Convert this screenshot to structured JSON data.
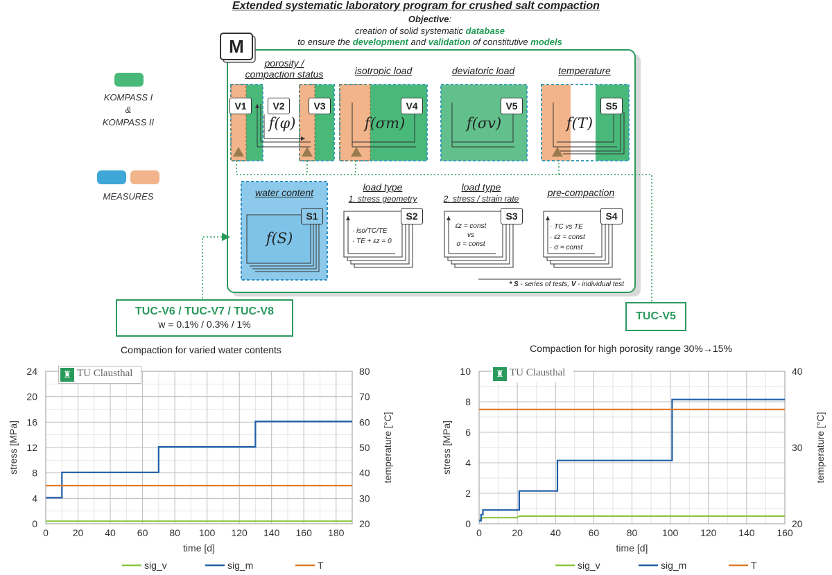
{
  "header": {
    "title": "Extended systematic laboratory program for crushed salt compaction",
    "objective_label": "Objective",
    "objective_colon": ":",
    "line2": "creation of solid systematic",
    "line2_em": "database",
    "line3_a": "to ensure the",
    "line3_em1": "development",
    "line3_b": "and",
    "line3_em2": "validation",
    "line3_c": "of constitutive",
    "line3_em3": "models"
  },
  "legend_left": {
    "kompass": [
      "KOMPASS I",
      "&",
      "KOMPASS II"
    ],
    "measures": "MEASURES",
    "colors": {
      "green": "#49b97a",
      "blue": "#3ea7d8",
      "orange": "#f2b48a"
    }
  },
  "matrix": {
    "m_label": "M",
    "sections": [
      {
        "label": "porosity /",
        "label2": "compaction status"
      },
      {
        "label": "isotropic load"
      },
      {
        "label": "deviatoric load"
      },
      {
        "label": "temperature"
      }
    ],
    "v_tags": [
      "V1",
      "V2",
      "V3",
      "V4",
      "V5",
      "S5"
    ],
    "funcs": {
      "phi": "f(φ)",
      "sigm": "f(σm)",
      "sigv": "f(σv)",
      "T": "f(T)",
      "S": "f(S)"
    },
    "series": [
      {
        "tag": "S1",
        "title": "water content"
      },
      {
        "tag": "S2",
        "title": "load type",
        "sub": "1. stress geometry",
        "lines": [
          "· iso/TC/TE",
          "· TE + εz = 0"
        ]
      },
      {
        "tag": "S3",
        "title": "load type",
        "sub": "2. stress / strain rate",
        "lines": [
          "ε̇z = const",
          "vs",
          "σ = const"
        ]
      },
      {
        "tag": "S4",
        "title": "pre-compaction",
        "lines": [
          "· TC vs TE",
          "· ε̇z = const",
          "· σ = const"
        ]
      }
    ],
    "footnote_a": "* S",
    "footnote_b": " - series of tests, ",
    "footnote_c": "V",
    "footnote_d": " - individual test"
  },
  "callouts": {
    "left_title": "TUC-V6 / TUC-V7 / TUC-V8",
    "left_sub": "w = 0.1% / 0.3% / 1%",
    "right_title": "TUC-V5"
  },
  "logo_text": "TU Clausthal",
  "chart_data": [
    {
      "type": "line",
      "title": "Compaction for varied water contents",
      "xlabel": "time [d]",
      "ylabel": "stress [MPa]",
      "y2label": "temperature [°C]",
      "xlim": [
        0,
        190
      ],
      "ylim": [
        0,
        24
      ],
      "y2lim": [
        20,
        80
      ],
      "xticks": [
        0,
        20,
        40,
        60,
        80,
        100,
        120,
        140,
        160,
        180
      ],
      "yticks": [
        0,
        4,
        8,
        12,
        16,
        20,
        24
      ],
      "y2ticks": [
        20,
        30,
        40,
        50,
        60,
        70,
        80
      ],
      "grid": true,
      "legend": "bottom",
      "series": [
        {
          "name": "sig_v",
          "color": "#8cc63f",
          "axis": "y",
          "x": [
            0,
            190
          ],
          "y": [
            0.4,
            0.4
          ]
        },
        {
          "name": "sig_m",
          "color": "#1f5fa8",
          "axis": "y",
          "x": [
            0,
            10,
            10,
            70,
            70,
            130,
            130,
            190
          ],
          "y": [
            4.1,
            4.1,
            8.1,
            8.1,
            12.1,
            12.1,
            16.1,
            16.1
          ]
        },
        {
          "name": "T",
          "color": "#e07b2a",
          "axis": "y2",
          "x": [
            0,
            190
          ],
          "y": [
            35,
            35
          ]
        }
      ]
    },
    {
      "type": "line",
      "title": "Compaction for high porosity range 30%→15%",
      "xlabel": "time [d]",
      "ylabel": "stress [MPa]",
      "y2label": "temperature [°C]",
      "xlim": [
        0,
        160
      ],
      "ylim": [
        0,
        10
      ],
      "y2lim": [
        20,
        40
      ],
      "xticks": [
        0,
        20,
        40,
        60,
        80,
        100,
        120,
        140,
        160
      ],
      "yticks": [
        0,
        2,
        4,
        6,
        8,
        10
      ],
      "y2ticks": [
        20,
        30,
        40
      ],
      "grid": true,
      "legend": "bottom",
      "series": [
        {
          "name": "sig_v",
          "color": "#8cc63f",
          "axis": "y",
          "x": [
            0,
            1,
            2,
            20,
            21,
            160
          ],
          "y": [
            0.2,
            0.3,
            0.4,
            0.4,
            0.5,
            0.5
          ]
        },
        {
          "name": "sig_m",
          "color": "#1f5fa8",
          "axis": "y",
          "x": [
            0,
            1,
            1,
            2,
            2,
            21,
            21,
            41,
            41,
            101,
            101,
            160
          ],
          "y": [
            0.2,
            0.2,
            0.6,
            0.6,
            0.9,
            0.9,
            2.15,
            2.15,
            4.15,
            4.15,
            8.15,
            8.15
          ]
        },
        {
          "name": "T",
          "color": "#e07b2a",
          "axis": "y2",
          "x": [
            0,
            160
          ],
          "y": [
            35,
            35
          ]
        }
      ]
    }
  ]
}
